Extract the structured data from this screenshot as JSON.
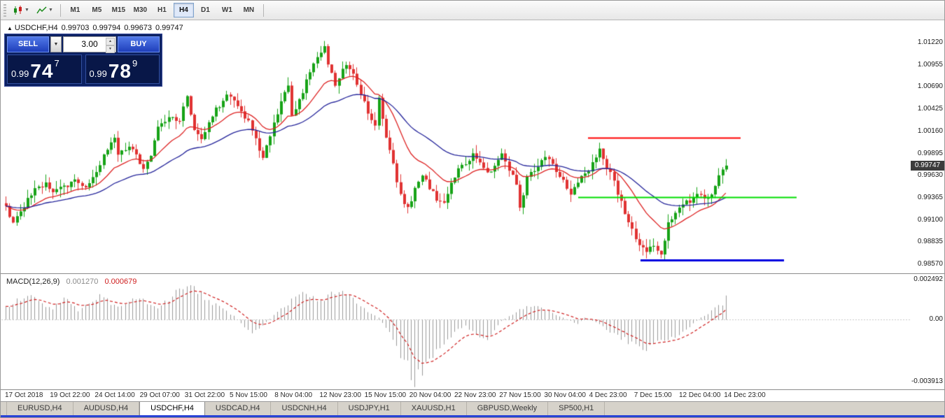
{
  "toolbar": {
    "icon_buttons": [
      "chart-type",
      "indicators"
    ],
    "timeframes": [
      "M1",
      "M5",
      "M15",
      "M30",
      "H1",
      "H4",
      "D1",
      "W1",
      "MN"
    ],
    "active_timeframe": "H4"
  },
  "chart_header": {
    "direction_icon": "▲",
    "symbol": "USDCHF,H4",
    "open": "0.99703",
    "high": "0.99794",
    "low": "0.99673",
    "close": "0.99747"
  },
  "trade_panel": {
    "sell_label": "SELL",
    "buy_label": "BUY",
    "lot": "3.00",
    "sell_price": {
      "prefix": "0.99",
      "big": "74",
      "sup": "7"
    },
    "buy_price": {
      "prefix": "0.99",
      "big": "78",
      "sup": "9"
    }
  },
  "price_badge": "0.99747",
  "macd_label": {
    "name": "MACD(12,26,9)",
    "value": "0.001270",
    "signal": "0.000679"
  },
  "glyphs": {
    "up": "▲",
    "down": "▼",
    "combo": "▼"
  },
  "tabs": [
    "EURUSD,H4",
    "AUDUSD,H4",
    "USDCHF,H4",
    "USDCAD,H4",
    "USDCNH,H4",
    "USDJPY,H1",
    "XAUUSD,H1",
    "GBPUSD,Weekly",
    "SP500,H1"
  ],
  "active_tab": "USDCHF,H4",
  "chart_data": [
    {
      "type": "candlestick",
      "title": "USDCHF,H4",
      "y_ticks": [
        "1.01220",
        "1.00955",
        "1.00690",
        "1.00425",
        "1.00160",
        "0.99895",
        "0.99630",
        "0.99365",
        "0.99100",
        "0.98835",
        "0.98570"
      ],
      "x_labels": [
        "17 Oct 2018",
        "19 Oct 22:00",
        "24 Oct 14:00",
        "29 Oct 07:00",
        "31 Oct 22:00",
        "5 Nov 15:00",
        "8 Nov 04:00",
        "12 Nov 23:00",
        "15 Nov 15:00",
        "20 Nov 04:00",
        "22 Nov 23:00",
        "27 Nov 15:00",
        "30 Nov 04:00",
        "4 Dec 23:00",
        "7 Dec 15:00",
        "12 Dec 04:00",
        "14 Dec 23:00"
      ],
      "y_axis": {
        "min": 0.98462,
        "max": 1.01488
      },
      "num_candles": 200,
      "last_price": 0.99747,
      "ohlc_last": {
        "open": 0.99703,
        "high": 0.99794,
        "low": 0.99673,
        "close": 0.99747
      },
      "up_color": "#17a317",
      "down_color": "#e03232",
      "close_waypoints": [
        [
          0,
          0.993
        ],
        [
          1,
          0.9915
        ],
        [
          2,
          0.9905
        ],
        [
          5,
          0.9928
        ],
        [
          8,
          0.9945
        ],
        [
          11,
          0.9952
        ],
        [
          13,
          0.9942
        ],
        [
          16,
          0.995
        ],
        [
          19,
          0.9958
        ],
        [
          22,
          0.9952
        ],
        [
          25,
          0.9965
        ],
        [
          28,
          0.9995
        ],
        [
          30,
          1.001
        ],
        [
          31,
          0.9985
        ],
        [
          34,
          1.0
        ],
        [
          36,
          0.999
        ],
        [
          38,
          0.997
        ],
        [
          40,
          0.9985
        ],
        [
          42,
          1.002
        ],
        [
          45,
          1.0035
        ],
        [
          48,
          1.0028
        ],
        [
          50,
          1.0058
        ],
        [
          52,
          1.002
        ],
        [
          54,
          1.0005
        ],
        [
          56,
          1.003
        ],
        [
          59,
          1.0048
        ],
        [
          61,
          1.0062
        ],
        [
          64,
          1.0045
        ],
        [
          67,
          1.0028
        ],
        [
          69,
          1.0005
        ],
        [
          71,
          0.9985
        ],
        [
          73,
          1.001
        ],
        [
          76,
          1.005
        ],
        [
          78,
          1.007
        ],
        [
          79,
          1.0035
        ],
        [
          82,
          1.006
        ],
        [
          84,
          1.009
        ],
        [
          86,
          1.0105
        ],
        [
          88,
          1.0118
        ],
        [
          89,
          1.0095
        ],
        [
          91,
          1.007
        ],
        [
          94,
          1.0098
        ],
        [
          96,
          1.0085
        ],
        [
          98,
          1.006
        ],
        [
          100,
          1.004
        ],
        [
          102,
          1.002
        ],
        [
          103,
          1.0055
        ],
        [
          105,
          1.001
        ],
        [
          107,
          0.9975
        ],
        [
          109,
          0.9938
        ],
        [
          111,
          0.9925
        ],
        [
          113,
          0.9945
        ],
        [
          115,
          0.996
        ],
        [
          117,
          0.995
        ],
        [
          119,
          0.9935
        ],
        [
          121,
          0.9928
        ],
        [
          123,
          0.9955
        ],
        [
          125,
          0.997
        ],
        [
          127,
          0.998
        ],
        [
          129,
          0.9988
        ],
        [
          132,
          0.9975
        ],
        [
          134,
          0.9965
        ],
        [
          137,
          0.9988
        ],
        [
          139,
          0.997
        ],
        [
          141,
          0.9955
        ],
        [
          142,
          0.9925
        ],
        [
          144,
          0.996
        ],
        [
          147,
          0.9975
        ],
        [
          149,
          0.9985
        ],
        [
          152,
          0.997
        ],
        [
          154,
          0.9958
        ],
        [
          156,
          0.9942
        ],
        [
          159,
          0.9962
        ],
        [
          161,
          0.997
        ],
        [
          164,
          0.9992
        ],
        [
          166,
          0.9975
        ],
        [
          168,
          0.9955
        ],
        [
          171,
          0.992
        ],
        [
          173,
          0.99
        ],
        [
          175,
          0.988
        ],
        [
          177,
          0.9872
        ],
        [
          179,
          0.988
        ],
        [
          181,
          0.9866
        ],
        [
          183,
          0.9905
        ],
        [
          185,
          0.992
        ],
        [
          187,
          0.9932
        ],
        [
          189,
          0.9928
        ],
        [
          191,
          0.994
        ],
        [
          194,
          0.9935
        ],
        [
          196,
          0.9952
        ],
        [
          198,
          0.9972
        ],
        [
          199,
          0.9975
        ]
      ],
      "overlays": [
        {
          "name": "ma-fast",
          "color": "#dd2222",
          "period": 16
        },
        {
          "name": "ma-slow",
          "color": "#24249a",
          "period": 40
        }
      ],
      "levels": [
        {
          "name": "resistance-line",
          "color": "#ff0000",
          "width": 2,
          "price": 1.00085,
          "x_from": 838,
          "x_to": 1056
        },
        {
          "name": "mid-support-line",
          "color": "#00dd00",
          "width": 2,
          "price": 0.99373,
          "x_from": 824,
          "x_to": 1136
        },
        {
          "name": "lower-support-line",
          "color": "#0000e0",
          "width": 3,
          "price": 0.98619,
          "x_from": 913,
          "x_to": 1118
        }
      ]
    },
    {
      "type": "macd-histogram",
      "label": "MACD(12,26,9)",
      "current": {
        "macd": 0.00127,
        "signal": 0.000679
      },
      "y_ticks": [
        "0.002492",
        "0.00",
        "-0.003913"
      ],
      "y_axis": {
        "min": -0.00439,
        "max": 0.00283
      },
      "histogram_color": "#9a9a9a",
      "signal_color": "#cf2020",
      "signal_period": 9,
      "hist_waypoints": [
        [
          1,
          0.0009
        ],
        [
          6,
          0.0016
        ],
        [
          9,
          0.0011
        ],
        [
          13,
          0.0006
        ],
        [
          16,
          0.0014
        ],
        [
          20,
          0.0005
        ],
        [
          26,
          0.0014
        ],
        [
          31,
          0.0008
        ],
        [
          37,
          0.0013
        ],
        [
          42,
          0.0007
        ],
        [
          50,
          0.0022
        ],
        [
          57,
          0.001
        ],
        [
          63,
          0.0002
        ],
        [
          68,
          -0.0009
        ],
        [
          72,
          -0.0002
        ],
        [
          76,
          0.0007
        ],
        [
          82,
          0.0016
        ],
        [
          87,
          0.0012
        ],
        [
          92,
          0.0018
        ],
        [
          97,
          0.0011
        ],
        [
          100,
          0.0005
        ],
        [
          103,
          0.0001
        ],
        [
          107,
          -0.0012
        ],
        [
          110,
          -0.0026
        ],
        [
          113,
          -0.0039
        ],
        [
          117,
          -0.0028
        ],
        [
          121,
          -0.0015
        ],
        [
          125,
          -0.0006
        ],
        [
          127,
          -0.0004
        ],
        [
          132,
          -0.0014
        ],
        [
          137,
          -0.0001
        ],
        [
          142,
          0.0006
        ],
        [
          146,
          0.0009
        ],
        [
          151,
          0.0004
        ],
        [
          155,
          0.0
        ],
        [
          158,
          -0.0003
        ],
        [
          160,
          0.0001
        ],
        [
          163,
          -0.0002
        ],
        [
          167,
          -0.0008
        ],
        [
          172,
          -0.0014
        ],
        [
          177,
          -0.0018
        ],
        [
          182,
          -0.0014
        ],
        [
          186,
          -0.0009
        ],
        [
          189,
          -0.0005
        ],
        [
          192,
          0.0001
        ],
        [
          195,
          0.0005
        ],
        [
          198,
          0.001
        ],
        [
          199,
          0.0013
        ]
      ]
    }
  ]
}
